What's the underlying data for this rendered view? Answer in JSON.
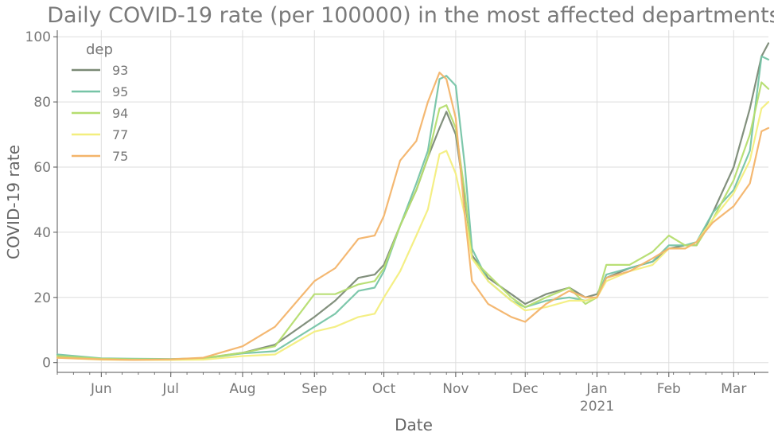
{
  "chart_data": {
    "type": "line",
    "title": "Daily COVID-19 rate (per 100000) in the most affected departments",
    "xlabel": "Date",
    "ylabel": "COVID-19 rate",
    "x_axis_kind": "date",
    "xlim": [
      "2020-05-13",
      "2021-03-16"
    ],
    "ylim": [
      -3,
      102
    ],
    "y_ticks": [
      0,
      20,
      40,
      60,
      80,
      100
    ],
    "x_ticks": [
      {
        "date": "2020-06-01",
        "label": "Jun"
      },
      {
        "date": "2020-07-01",
        "label": "Jul"
      },
      {
        "date": "2020-08-01",
        "label": "Aug"
      },
      {
        "date": "2020-09-01",
        "label": "Sep"
      },
      {
        "date": "2020-10-01",
        "label": "Oct"
      },
      {
        "date": "2020-11-01",
        "label": "Nov"
      },
      {
        "date": "2020-12-01",
        "label": "Dec"
      },
      {
        "date": "2021-01-01",
        "label": "Jan"
      },
      {
        "date": "2021-02-01",
        "label": "Feb"
      },
      {
        "date": "2021-03-01",
        "label": "Mar"
      }
    ],
    "year_label": {
      "date": "2021-01-01",
      "text": "2021"
    },
    "grid": true,
    "legend": {
      "title": "dep",
      "placement": "top-left"
    },
    "series": [
      {
        "name": "93",
        "color": "#7b8a76",
        "points": [
          [
            "2020-05-13",
            2.0
          ],
          [
            "2020-06-01",
            1.2
          ],
          [
            "2020-06-15",
            1.0
          ],
          [
            "2020-07-01",
            1.0
          ],
          [
            "2020-07-15",
            1.3
          ],
          [
            "2020-08-01",
            3.0
          ],
          [
            "2020-08-15",
            5.5
          ],
          [
            "2020-09-01",
            14.0
          ],
          [
            "2020-09-10",
            19.0
          ],
          [
            "2020-09-20",
            26.0
          ],
          [
            "2020-09-27",
            27.0
          ],
          [
            "2020-10-01",
            30.0
          ],
          [
            "2020-10-08",
            42.0
          ],
          [
            "2020-10-15",
            53.0
          ],
          [
            "2020-10-20",
            63.0
          ],
          [
            "2020-10-25",
            72.0
          ],
          [
            "2020-10-28",
            77.0
          ],
          [
            "2020-11-01",
            70.0
          ],
          [
            "2020-11-05",
            50.0
          ],
          [
            "2020-11-08",
            33.0
          ],
          [
            "2020-11-15",
            26.0
          ],
          [
            "2020-11-25",
            21.0
          ],
          [
            "2020-12-01",
            18.0
          ],
          [
            "2020-12-10",
            21.0
          ],
          [
            "2020-12-20",
            23.0
          ],
          [
            "2020-12-27",
            20.0
          ],
          [
            "2021-01-01",
            21.0
          ],
          [
            "2021-01-05",
            26.0
          ],
          [
            "2021-01-15",
            29.0
          ],
          [
            "2021-01-25",
            31.0
          ],
          [
            "2021-02-01",
            35.0
          ],
          [
            "2021-02-08",
            36.0
          ],
          [
            "2021-02-13",
            36.0
          ],
          [
            "2021-02-20",
            46.0
          ],
          [
            "2021-03-01",
            60.0
          ],
          [
            "2021-03-08",
            78.0
          ],
          [
            "2021-03-13",
            94.0
          ],
          [
            "2021-03-16",
            98.0
          ]
        ]
      },
      {
        "name": "95",
        "color": "#76c4a6",
        "points": [
          [
            "2020-05-13",
            2.5
          ],
          [
            "2020-06-01",
            1.3
          ],
          [
            "2020-06-15",
            1.2
          ],
          [
            "2020-07-01",
            1.1
          ],
          [
            "2020-07-15",
            1.3
          ],
          [
            "2020-08-01",
            2.8
          ],
          [
            "2020-08-15",
            3.5
          ],
          [
            "2020-09-01",
            11.0
          ],
          [
            "2020-09-10",
            15.0
          ],
          [
            "2020-09-20",
            22.0
          ],
          [
            "2020-09-27",
            23.0
          ],
          [
            "2020-10-01",
            28.0
          ],
          [
            "2020-10-08",
            42.0
          ],
          [
            "2020-10-15",
            55.0
          ],
          [
            "2020-10-20",
            65.0
          ],
          [
            "2020-10-25",
            87.0
          ],
          [
            "2020-10-28",
            88.0
          ],
          [
            "2020-11-01",
            85.0
          ],
          [
            "2020-11-05",
            60.0
          ],
          [
            "2020-11-08",
            35.0
          ],
          [
            "2020-11-15",
            25.0
          ],
          [
            "2020-11-25",
            19.0
          ],
          [
            "2020-12-01",
            17.0
          ],
          [
            "2020-12-10",
            19.0
          ],
          [
            "2020-12-20",
            20.0
          ],
          [
            "2020-12-27",
            19.0
          ],
          [
            "2021-01-01",
            20.0
          ],
          [
            "2021-01-05",
            27.0
          ],
          [
            "2021-01-15",
            29.0
          ],
          [
            "2021-01-25",
            31.0
          ],
          [
            "2021-02-01",
            36.0
          ],
          [
            "2021-02-08",
            36.0
          ],
          [
            "2021-02-13",
            37.0
          ],
          [
            "2021-02-20",
            46.0
          ],
          [
            "2021-03-01",
            53.0
          ],
          [
            "2021-03-08",
            65.0
          ],
          [
            "2021-03-13",
            94.0
          ],
          [
            "2021-03-16",
            93.0
          ]
        ]
      },
      {
        "name": "94",
        "color": "#b5dd6f",
        "points": [
          [
            "2020-05-13",
            2.0
          ],
          [
            "2020-06-01",
            1.2
          ],
          [
            "2020-06-15",
            1.0
          ],
          [
            "2020-07-01",
            1.0
          ],
          [
            "2020-07-15",
            1.4
          ],
          [
            "2020-08-01",
            3.0
          ],
          [
            "2020-08-15",
            5.0
          ],
          [
            "2020-09-01",
            21.0
          ],
          [
            "2020-09-10",
            21.0
          ],
          [
            "2020-09-20",
            24.0
          ],
          [
            "2020-09-27",
            25.0
          ],
          [
            "2020-10-01",
            29.0
          ],
          [
            "2020-10-08",
            42.0
          ],
          [
            "2020-10-15",
            53.0
          ],
          [
            "2020-10-20",
            63.0
          ],
          [
            "2020-10-25",
            78.0
          ],
          [
            "2020-10-28",
            79.0
          ],
          [
            "2020-11-01",
            72.0
          ],
          [
            "2020-11-05",
            52.0
          ],
          [
            "2020-11-08",
            32.0
          ],
          [
            "2020-11-15",
            27.0
          ],
          [
            "2020-11-25",
            20.0
          ],
          [
            "2020-12-01",
            17.0
          ],
          [
            "2020-12-10",
            20.0
          ],
          [
            "2020-12-20",
            23.0
          ],
          [
            "2020-12-27",
            18.0
          ],
          [
            "2021-01-01",
            20.0
          ],
          [
            "2021-01-05",
            30.0
          ],
          [
            "2021-01-15",
            30.0
          ],
          [
            "2021-01-25",
            34.0
          ],
          [
            "2021-02-01",
            39.0
          ],
          [
            "2021-02-08",
            36.0
          ],
          [
            "2021-02-13",
            36.0
          ],
          [
            "2021-02-20",
            44.0
          ],
          [
            "2021-03-01",
            56.0
          ],
          [
            "2021-03-08",
            70.0
          ],
          [
            "2021-03-13",
            86.0
          ],
          [
            "2021-03-16",
            84.0
          ]
        ]
      },
      {
        "name": "77",
        "color": "#f3ee7e",
        "points": [
          [
            "2020-05-13",
            1.5
          ],
          [
            "2020-06-01",
            0.9
          ],
          [
            "2020-06-15",
            0.8
          ],
          [
            "2020-07-01",
            0.8
          ],
          [
            "2020-07-15",
            0.9
          ],
          [
            "2020-08-01",
            2.0
          ],
          [
            "2020-08-15",
            2.5
          ],
          [
            "2020-09-01",
            9.5
          ],
          [
            "2020-09-10",
            11.0
          ],
          [
            "2020-09-20",
            14.0
          ],
          [
            "2020-09-27",
            15.0
          ],
          [
            "2020-10-01",
            20.0
          ],
          [
            "2020-10-08",
            28.0
          ],
          [
            "2020-10-15",
            39.0
          ],
          [
            "2020-10-20",
            47.0
          ],
          [
            "2020-10-25",
            64.0
          ],
          [
            "2020-10-28",
            65.0
          ],
          [
            "2020-11-01",
            58.0
          ],
          [
            "2020-11-05",
            45.0
          ],
          [
            "2020-11-08",
            32.0
          ],
          [
            "2020-11-15",
            25.0
          ],
          [
            "2020-11-25",
            19.0
          ],
          [
            "2020-12-01",
            16.0
          ],
          [
            "2020-12-10",
            17.0
          ],
          [
            "2020-12-20",
            19.0
          ],
          [
            "2020-12-27",
            19.0
          ],
          [
            "2021-01-01",
            20.0
          ],
          [
            "2021-01-05",
            25.0
          ],
          [
            "2021-01-15",
            28.0
          ],
          [
            "2021-01-25",
            30.0
          ],
          [
            "2021-02-01",
            35.0
          ],
          [
            "2021-02-08",
            35.0
          ],
          [
            "2021-02-13",
            37.0
          ],
          [
            "2021-02-20",
            44.0
          ],
          [
            "2021-03-01",
            52.0
          ],
          [
            "2021-03-08",
            62.0
          ],
          [
            "2021-03-13",
            78.0
          ],
          [
            "2021-03-16",
            80.0
          ]
        ]
      },
      {
        "name": "75",
        "color": "#f3b46a",
        "points": [
          [
            "2020-05-13",
            1.5
          ],
          [
            "2020-06-01",
            1.0
          ],
          [
            "2020-06-15",
            0.8
          ],
          [
            "2020-07-01",
            1.0
          ],
          [
            "2020-07-15",
            1.5
          ],
          [
            "2020-08-01",
            5.0
          ],
          [
            "2020-08-15",
            11.0
          ],
          [
            "2020-09-01",
            25.0
          ],
          [
            "2020-09-10",
            29.0
          ],
          [
            "2020-09-20",
            38.0
          ],
          [
            "2020-09-27",
            39.0
          ],
          [
            "2020-10-01",
            45.0
          ],
          [
            "2020-10-08",
            62.0
          ],
          [
            "2020-10-15",
            68.0
          ],
          [
            "2020-10-20",
            80.0
          ],
          [
            "2020-10-25",
            89.0
          ],
          [
            "2020-10-28",
            87.0
          ],
          [
            "2020-11-01",
            75.0
          ],
          [
            "2020-11-05",
            45.0
          ],
          [
            "2020-11-08",
            25.0
          ],
          [
            "2020-11-15",
            18.0
          ],
          [
            "2020-11-25",
            14.0
          ],
          [
            "2020-12-01",
            12.5
          ],
          [
            "2020-12-10",
            18.0
          ],
          [
            "2020-12-20",
            22.0
          ],
          [
            "2020-12-27",
            20.0
          ],
          [
            "2021-01-01",
            20.0
          ],
          [
            "2021-01-05",
            26.0
          ],
          [
            "2021-01-15",
            28.0
          ],
          [
            "2021-01-25",
            32.0
          ],
          [
            "2021-02-01",
            35.0
          ],
          [
            "2021-02-08",
            35.0
          ],
          [
            "2021-02-13",
            37.0
          ],
          [
            "2021-02-20",
            43.0
          ],
          [
            "2021-03-01",
            48.0
          ],
          [
            "2021-03-08",
            55.0
          ],
          [
            "2021-03-13",
            71.0
          ],
          [
            "2021-03-16",
            72.0
          ]
        ]
      }
    ]
  }
}
